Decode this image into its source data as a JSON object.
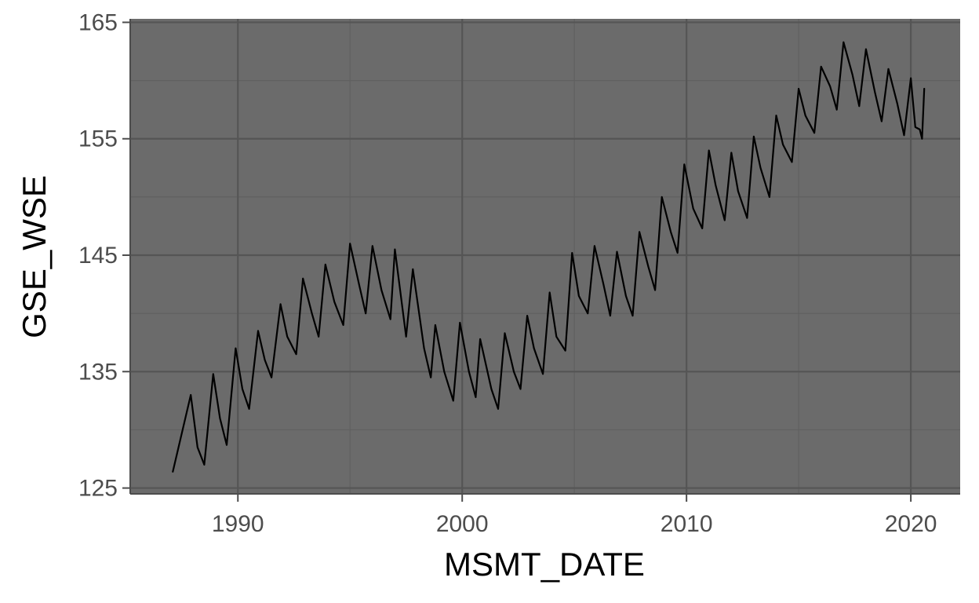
{
  "chart_data": {
    "type": "line",
    "title": "",
    "xlabel": "MSMT_DATE",
    "ylabel": "GSE_WSE",
    "xlim": [
      1985.2,
      2022.2
    ],
    "ylim": [
      124.5,
      165.3
    ],
    "x_ticks": [
      1990,
      2000,
      2010,
      2020
    ],
    "x_tick_labels": [
      "1990",
      "2000",
      "2010",
      "2020"
    ],
    "y_ticks": [
      125,
      135,
      145,
      155,
      165
    ],
    "y_tick_labels": [
      "125",
      "135",
      "145",
      "155",
      "165"
    ],
    "y_minor_ticks": [
      130,
      140,
      150,
      160
    ],
    "x_minor_ticks": [
      1985,
      1995,
      2005,
      2015
    ],
    "grid": true,
    "legend": "none",
    "colors": {
      "panel_background": "#6b6b6b",
      "major_grid": "#555555",
      "minor_grid": "#606060",
      "line": "#000000",
      "axis_line": "#4d4d4d",
      "page_background": "#ffffff"
    },
    "series": [
      {
        "x": [
          1987.1,
          1987.9,
          1988.2,
          1988.5,
          1988.9,
          1989.2,
          1989.5,
          1989.9,
          1990.2,
          1990.5,
          1990.9,
          1991.2,
          1991.5,
          1991.9,
          1992.2,
          1992.6,
          1992.9,
          1993.3,
          1993.6,
          1993.9,
          1994.3,
          1994.7,
          1995.0,
          1995.4,
          1995.7,
          1996.0,
          1996.4,
          1996.8,
          1997.0,
          1997.5,
          1997.8,
          1998.3,
          1998.6,
          1998.8,
          1999.2,
          1999.6,
          1999.9,
          2000.3,
          2000.6,
          2000.8,
          2001.3,
          2001.6,
          2001.9,
          2002.3,
          2002.6,
          2002.9,
          2003.2,
          2003.6,
          2003.9,
          2004.2,
          2004.6,
          2004.9,
          2005.2,
          2005.6,
          2005.9,
          2006.3,
          2006.6,
          2006.9,
          2007.3,
          2007.6,
          2007.9,
          2008.3,
          2008.6,
          2008.9,
          2009.3,
          2009.6,
          2009.9,
          2010.3,
          2010.7,
          2011.0,
          2011.3,
          2011.7,
          2012.0,
          2012.3,
          2012.7,
          2013.0,
          2013.3,
          2013.7,
          2014.0,
          2014.3,
          2014.7,
          2015.0,
          2015.3,
          2015.7,
          2016.0,
          2016.4,
          2016.7,
          2017.0,
          2017.4,
          2017.7,
          2018.0,
          2018.4,
          2018.7,
          2019.0,
          2019.4,
          2019.7,
          2020.0,
          2020.2,
          2020.4,
          2020.5,
          2020.6
        ],
        "y": [
          126.4,
          133.0,
          128.5,
          127.0,
          134.8,
          131.0,
          128.7,
          137.0,
          133.5,
          131.8,
          138.5,
          136.0,
          134.5,
          140.8,
          138.0,
          136.5,
          143.0,
          140.0,
          138.0,
          144.2,
          141.0,
          139.0,
          146.0,
          142.5,
          140.0,
          145.8,
          142.0,
          139.5,
          145.5,
          138.0,
          143.8,
          137.0,
          134.5,
          139.0,
          135.0,
          132.5,
          139.2,
          135.0,
          132.8,
          137.8,
          133.5,
          131.8,
          138.3,
          135.0,
          133.5,
          139.8,
          137.0,
          134.8,
          141.8,
          138.0,
          136.8,
          145.2,
          141.5,
          140.0,
          145.8,
          142.5,
          139.8,
          145.3,
          141.5,
          139.8,
          147.0,
          144.0,
          142.0,
          150.0,
          147.0,
          145.2,
          152.8,
          149.0,
          147.3,
          154.0,
          151.0,
          148.0,
          153.8,
          150.5,
          148.2,
          155.2,
          152.5,
          150.0,
          157.0,
          154.5,
          153.0,
          159.3,
          157.0,
          155.5,
          161.2,
          159.5,
          157.5,
          163.3,
          160.5,
          157.8,
          162.7,
          159.0,
          156.5,
          161.0,
          158.0,
          155.3,
          160.2,
          156.0,
          155.8,
          155.0,
          159.3
        ]
      }
    ]
  }
}
